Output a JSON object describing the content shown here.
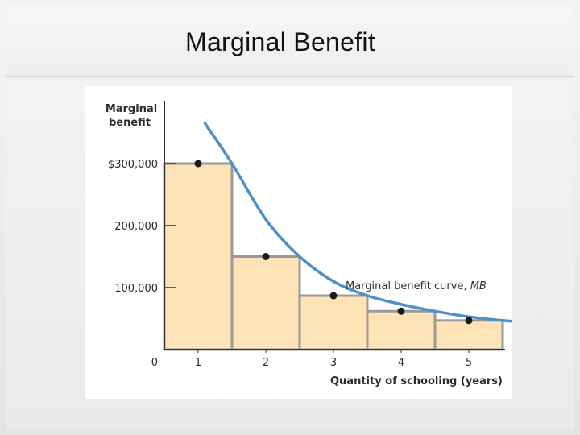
{
  "slide": {
    "title": "Marginal Benefit"
  },
  "chart_data": {
    "type": "bar",
    "categories": [
      "1",
      "2",
      "3",
      "4",
      "5"
    ],
    "values": [
      300000,
      150000,
      87000,
      62000,
      47000
    ],
    "ylabel": "Marginal\nbenefit",
    "xlabel": "Quantity of schooling (years)",
    "y_ticks": [
      0,
      100000,
      200000,
      300000
    ],
    "y_tick_labels": [
      "0",
      "100,000",
      "200,000",
      "$300,000"
    ],
    "ylim": [
      0,
      330000
    ],
    "curve_label": "Marginal benefit curve, ",
    "curve_label_italic": "MB",
    "curve_points": [
      [
        0.6,
        365000
      ],
      [
        1,
        300000
      ],
      [
        1.5,
        210000
      ],
      [
        2,
        150000
      ],
      [
        2.5,
        110000
      ],
      [
        3,
        87000
      ],
      [
        3.5,
        73000
      ],
      [
        4,
        62000
      ],
      [
        4.5,
        53000
      ],
      [
        5,
        47000
      ],
      [
        5.5,
        43000
      ]
    ],
    "colors": {
      "bar_fill": "#fde3b6",
      "bar_stroke": "#9a9a9a",
      "curve": "#4f8fc8",
      "dot": "#1a1a1a",
      "axis": "#333333"
    },
    "grid": false
  }
}
